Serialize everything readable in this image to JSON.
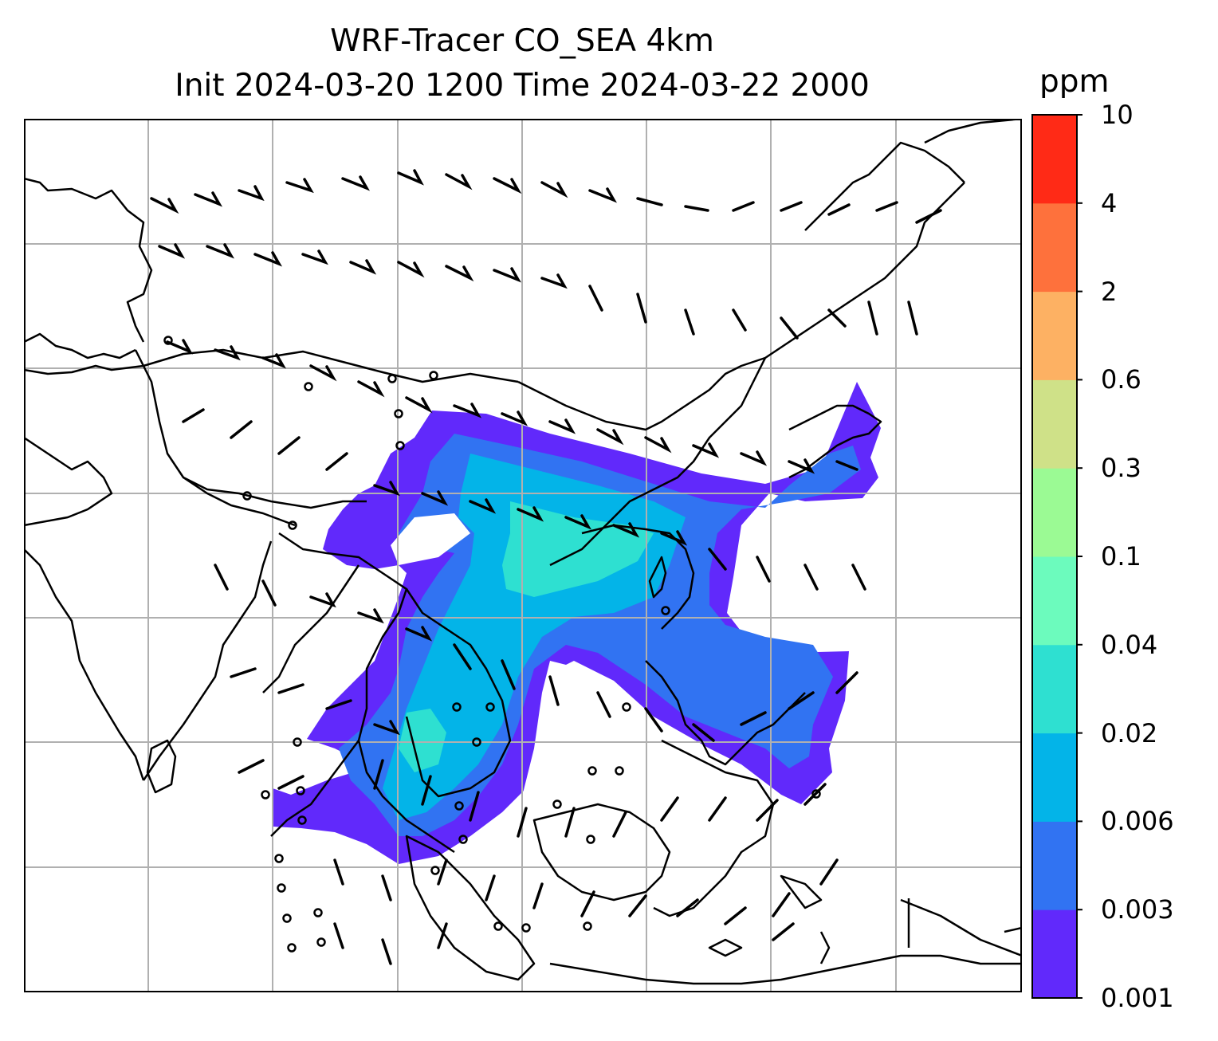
{
  "title": {
    "line1": "WRF-Tracer CO_SEA 4km",
    "line2": "Init 2024-03-20 1200 Time 2024-03-22 2000"
  },
  "colorbar": {
    "unit": "ppm",
    "ticks": [
      "0.001",
      "0.003",
      "0.006",
      "0.02",
      "0.04",
      "0.1",
      "0.3",
      "0.6",
      "2",
      "4",
      "10"
    ],
    "colors": [
      "#6129fb",
      "#3173f2",
      "#03b4e8",
      "#2ee0d1",
      "#6cfbbd",
      "#9bfa94",
      "#cfe188",
      "#fdb163",
      "#fe713c",
      "#ff2a16"
    ]
  },
  "map": {
    "land_outline": "#000000",
    "grid": "#b0b0b0",
    "plume_levels": [
      "#6129fb",
      "#3173f2",
      "#03b4e8",
      "#2ee0d1"
    ]
  }
}
